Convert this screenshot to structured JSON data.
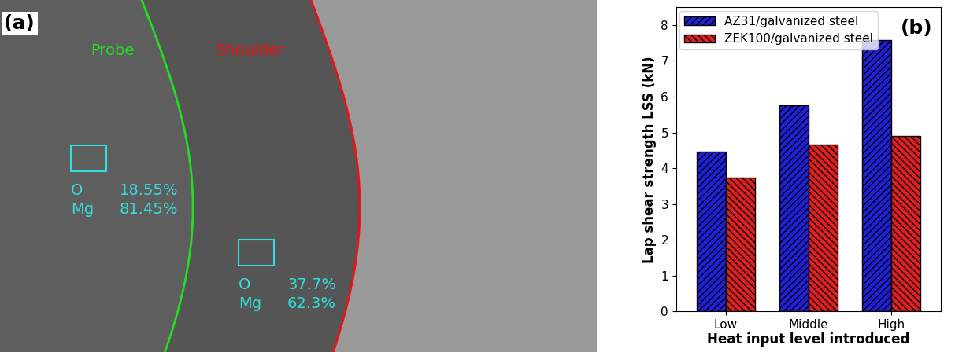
{
  "image_panel": {
    "label": "(a)",
    "regions": [
      {
        "name": "Probe",
        "color": "#22dd22"
      },
      {
        "name": "Shoulder",
        "color": "#ee1111"
      }
    ],
    "measurements": [
      {
        "rows": [
          {
            "element": "O",
            "amount": "18.55%"
          },
          {
            "element": "Mg",
            "amount": "81.45%"
          }
        ]
      },
      {
        "rows": [
          {
            "element": "O",
            "amount": "37.7%"
          },
          {
            "element": "Mg",
            "amount": "62.3%"
          }
        ]
      }
    ],
    "text_color": "#33dddd"
  },
  "chart_data": {
    "type": "bar",
    "annotation": "(b)",
    "categories": [
      "Low",
      "Middle",
      "High"
    ],
    "series": [
      {
        "name": "AZ31/galvanized steel",
        "color": "#2020d8",
        "values": [
          4.47,
          5.75,
          7.57
        ]
      },
      {
        "name": "ZEK100/galvanized steel",
        "color": "#e02020",
        "values": [
          3.73,
          4.67,
          4.9
        ]
      }
    ],
    "x_label": "Heat input level introduced",
    "y_label": "Lap shear strength LSS (kN)",
    "ylim": [
      0,
      8.5
    ],
    "yticks": [
      0,
      1,
      2,
      3,
      4,
      5,
      6,
      7,
      8
    ],
    "legend": "upper left"
  }
}
